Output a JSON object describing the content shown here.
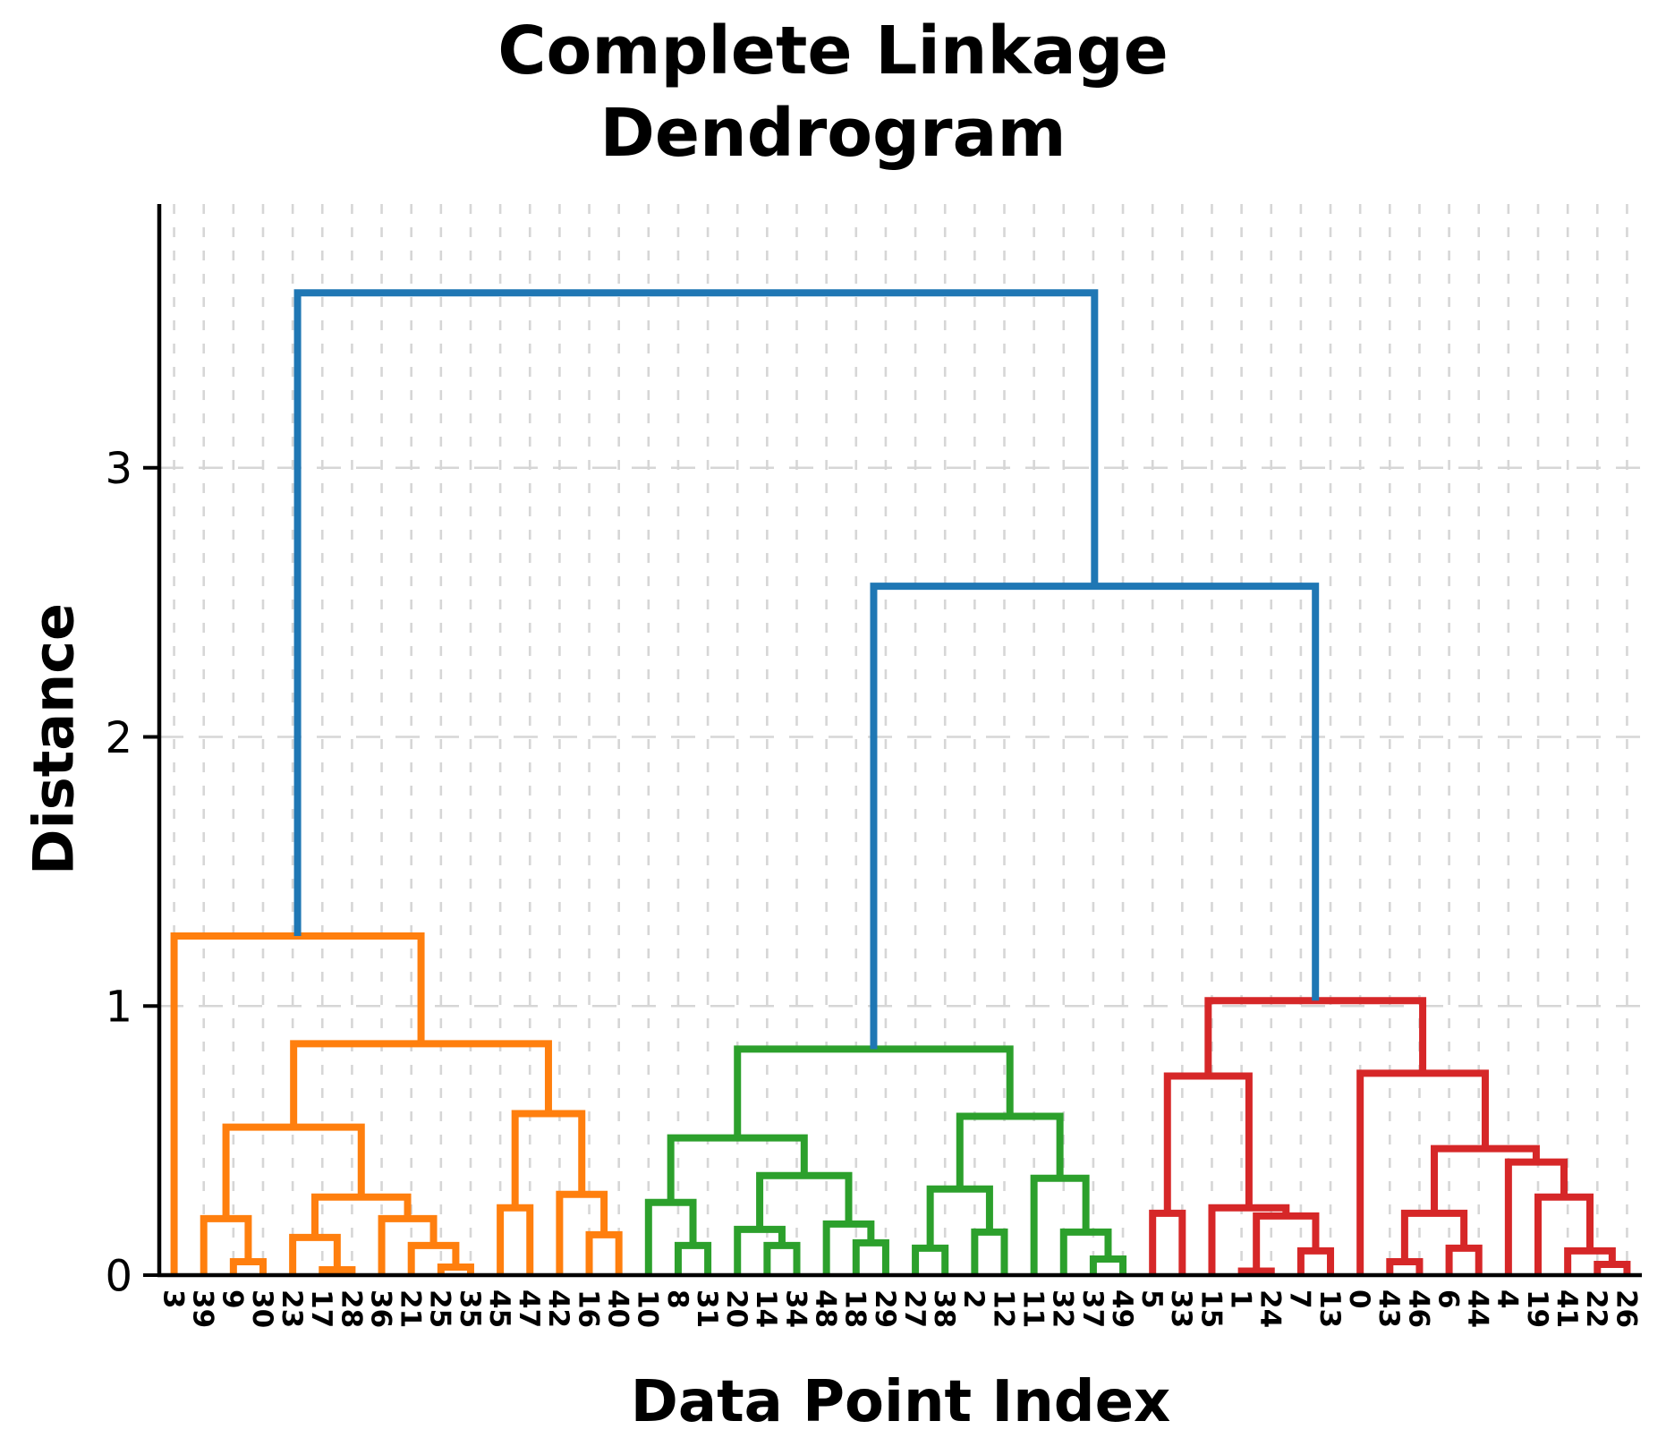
{
  "chart_data": {
    "type": "dendrogram",
    "linkage_method": "complete",
    "title": "Complete Linkage\nDendrogram",
    "xlabel": "Data Point Index",
    "ylabel": "Distance",
    "grid": true,
    "yticks": [
      0,
      1,
      2,
      3
    ],
    "ylim": [
      0,
      3.98
    ],
    "leaves": [
      "3",
      "39",
      "9",
      "30",
      "23",
      "17",
      "28",
      "36",
      "21",
      "25",
      "35",
      "45",
      "47",
      "42",
      "16",
      "40",
      "10",
      "8",
      "31",
      "20",
      "14",
      "34",
      "48",
      "18",
      "29",
      "27",
      "38",
      "2",
      "12",
      "11",
      "32",
      "37",
      "49",
      "5",
      "33",
      "15",
      "1",
      "24",
      "7",
      "13",
      "0",
      "43",
      "46",
      "6",
      "44",
      "4",
      "19",
      "41",
      "22",
      "26"
    ],
    "colors": {
      "link_top": "#1f77b4",
      "cluster_orange": "#ff7f0e",
      "cluster_green": "#2ca02c",
      "cluster_red": "#d62728",
      "grid": "#d6d6d6",
      "axis": "#000000"
    },
    "tree": {
      "h": 3.65,
      "c": "#1f77b4",
      "ch": [
        {
          "h": 1.26,
          "c": "#ff7f0e",
          "ch": [
            "3",
            {
              "h": 0.86,
              "c": "#ff7f0e",
              "ch": [
                {
                  "h": 0.55,
                  "c": "#ff7f0e",
                  "ch": [
                    {
                      "h": 0.21,
                      "c": "#ff7f0e",
                      "ch": [
                        "39",
                        {
                          "h": 0.05,
                          "c": "#ff7f0e",
                          "ch": [
                            "9",
                            "30"
                          ]
                        }
                      ]
                    },
                    {
                      "h": 0.29,
                      "c": "#ff7f0e",
                      "ch": [
                        {
                          "h": 0.14,
                          "c": "#ff7f0e",
                          "ch": [
                            "23",
                            {
                              "h": 0.02,
                              "c": "#ff7f0e",
                              "ch": [
                                "17",
                                "28"
                              ]
                            }
                          ]
                        },
                        {
                          "h": 0.21,
                          "c": "#ff7f0e",
                          "ch": [
                            "36",
                            {
                              "h": 0.11,
                              "c": "#ff7f0e",
                              "ch": [
                                "21",
                                {
                                  "h": 0.03,
                                  "c": "#ff7f0e",
                                  "ch": [
                                    "25",
                                    "35"
                                  ]
                                }
                              ]
                            }
                          ]
                        }
                      ]
                    }
                  ]
                },
                {
                  "h": 0.6,
                  "c": "#ff7f0e",
                  "ch": [
                    {
                      "h": 0.25,
                      "c": "#ff7f0e",
                      "ch": [
                        "45",
                        "47"
                      ]
                    },
                    {
                      "h": 0.3,
                      "c": "#ff7f0e",
                      "ch": [
                        "42",
                        {
                          "h": 0.15,
                          "c": "#ff7f0e",
                          "ch": [
                            "16",
                            "40"
                          ]
                        }
                      ]
                    }
                  ]
                }
              ]
            }
          ]
        },
        {
          "h": 2.56,
          "c": "#1f77b4",
          "ch": [
            {
              "h": 0.84,
              "c": "#2ca02c",
              "ch": [
                {
                  "h": 0.51,
                  "c": "#2ca02c",
                  "ch": [
                    {
                      "h": 0.27,
                      "c": "#2ca02c",
                      "ch": [
                        "10",
                        {
                          "h": 0.11,
                          "c": "#2ca02c",
                          "ch": [
                            "8",
                            "31"
                          ]
                        }
                      ]
                    },
                    {
                      "h": 0.37,
                      "c": "#2ca02c",
                      "ch": [
                        {
                          "h": 0.17,
                          "c": "#2ca02c",
                          "ch": [
                            "20",
                            {
                              "h": 0.11,
                              "c": "#2ca02c",
                              "ch": [
                                "14",
                                "34"
                              ]
                            }
                          ]
                        },
                        {
                          "h": 0.19,
                          "c": "#2ca02c",
                          "ch": [
                            "48",
                            {
                              "h": 0.12,
                              "c": "#2ca02c",
                              "ch": [
                                "18",
                                "29"
                              ]
                            }
                          ]
                        }
                      ]
                    }
                  ]
                },
                {
                  "h": 0.59,
                  "c": "#2ca02c",
                  "ch": [
                    {
                      "h": 0.32,
                      "c": "#2ca02c",
                      "ch": [
                        {
                          "h": 0.1,
                          "c": "#2ca02c",
                          "ch": [
                            "27",
                            "38"
                          ]
                        },
                        {
                          "h": 0.16,
                          "c": "#2ca02c",
                          "ch": [
                            "2",
                            "12"
                          ]
                        }
                      ]
                    },
                    {
                      "h": 0.36,
                      "c": "#2ca02c",
                      "ch": [
                        "11",
                        {
                          "h": 0.16,
                          "c": "#2ca02c",
                          "ch": [
                            "32",
                            {
                              "h": 0.06,
                              "c": "#2ca02c",
                              "ch": [
                                "37",
                                "49"
                              ]
                            }
                          ]
                        }
                      ]
                    }
                  ]
                }
              ]
            },
            {
              "h": 1.02,
              "c": "#d62728",
              "ch": [
                {
                  "h": 0.74,
                  "c": "#d62728",
                  "ch": [
                    {
                      "h": 0.23,
                      "c": "#d62728",
                      "ch": [
                        "5",
                        "33"
                      ]
                    },
                    {
                      "h": 0.25,
                      "c": "#d62728",
                      "ch": [
                        "15",
                        {
                          "h": 0.22,
                          "c": "#d62728",
                          "ch": [
                            {
                              "h": 0.015,
                              "c": "#d62728",
                              "ch": [
                                "1",
                                "24"
                              ]
                            },
                            {
                              "h": 0.09,
                              "c": "#d62728",
                              "ch": [
                                "7",
                                "13"
                              ]
                            }
                          ]
                        }
                      ]
                    }
                  ]
                },
                {
                  "h": 0.75,
                  "c": "#d62728",
                  "ch": [
                    "0",
                    {
                      "h": 0.47,
                      "c": "#d62728",
                      "ch": [
                        {
                          "h": 0.23,
                          "c": "#d62728",
                          "ch": [
                            {
                              "h": 0.05,
                              "c": "#d62728",
                              "ch": [
                                "43",
                                "46"
                              ]
                            },
                            {
                              "h": 0.1,
                              "c": "#d62728",
                              "ch": [
                                "6",
                                "44"
                              ]
                            }
                          ]
                        },
                        {
                          "h": 0.42,
                          "c": "#d62728",
                          "ch": [
                            "4",
                            {
                              "h": 0.29,
                              "c": "#d62728",
                              "ch": [
                                "19",
                                {
                                  "h": 0.09,
                                  "c": "#d62728",
                                  "ch": [
                                    "41",
                                    {
                                      "h": 0.04,
                                      "c": "#d62728",
                                      "ch": [
                                        "22",
                                        "26"
                                      ]
                                    }
                                  ]
                                }
                              ]
                            }
                          ]
                        }
                      ]
                    }
                  ]
                }
              ]
            }
          ]
        }
      ]
    }
  }
}
